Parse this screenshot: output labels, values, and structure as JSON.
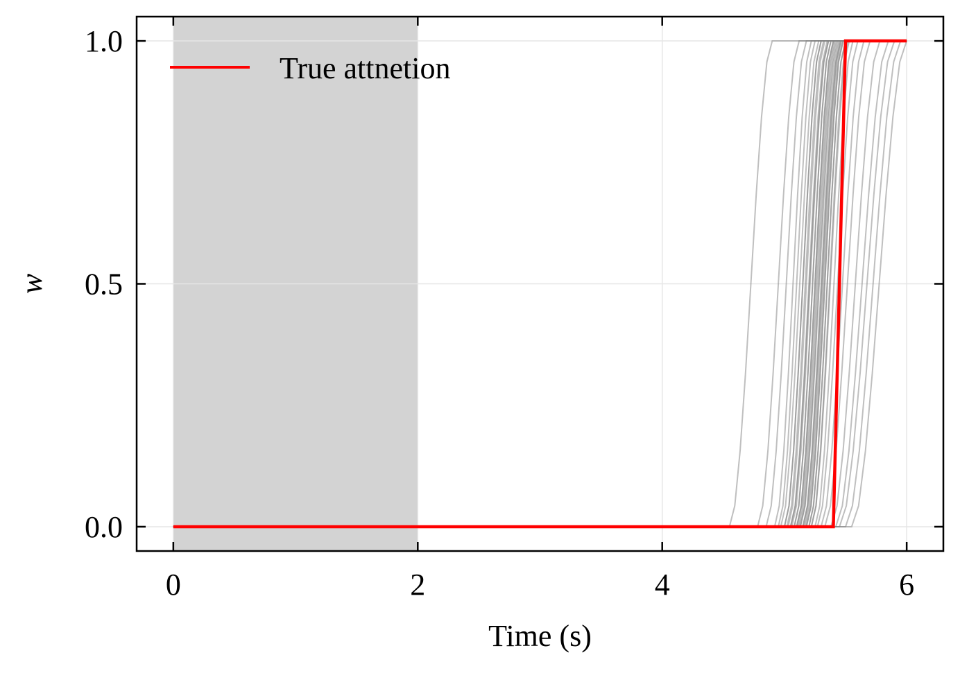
{
  "chart_data": {
    "type": "line",
    "xlabel": "Time (s)",
    "ylabel": "w",
    "xlim": [
      -0.3,
      6.3
    ],
    "ylim": [
      -0.05,
      1.05
    ],
    "x_ticks": [
      0,
      2,
      4,
      6
    ],
    "x_tick_labels": [
      "0",
      "2",
      "4",
      "6"
    ],
    "y_ticks": [
      0.0,
      0.5,
      1.0
    ],
    "y_tick_labels": [
      "0.0",
      "0.5",
      "1.0"
    ],
    "grid": true,
    "tick_direction": "in",
    "legend": {
      "position": "top-left",
      "entries": [
        {
          "label": "True attnetion",
          "color": "#ff0000"
        }
      ]
    },
    "shaded_region": {
      "x_start": 0,
      "x_end": 2,
      "color": "#d3d3d3"
    },
    "true_attention": {
      "name": "True attnetion",
      "color": "#ff0000",
      "x": [
        0,
        5.4,
        5.5,
        6.0
      ],
      "y": [
        0,
        0,
        1,
        1
      ]
    },
    "samples": {
      "color": "#808080",
      "opacity": 0.5,
      "count": 40,
      "transition_start_times": [
        4.55,
        4.78,
        4.85,
        4.92,
        4.95,
        4.97,
        5.0,
        5.0,
        5.02,
        5.03,
        5.05,
        5.05,
        5.06,
        5.08,
        5.08,
        5.1,
        5.1,
        5.11,
        5.12,
        5.13,
        5.13,
        5.15,
        5.15,
        5.16,
        5.17,
        5.18,
        5.18,
        5.2,
        5.2,
        5.22,
        5.22,
        5.25,
        5.27,
        5.3,
        5.33,
        5.38,
        5.42,
        5.45,
        5.5,
        5.55
      ],
      "transition_end_times": [
        4.9,
        5.12,
        5.18,
        5.22,
        5.25,
        5.28,
        5.3,
        5.3,
        5.32,
        5.33,
        5.35,
        5.36,
        5.36,
        5.38,
        5.38,
        5.4,
        5.4,
        5.41,
        5.42,
        5.43,
        5.44,
        5.45,
        5.46,
        5.46,
        5.47,
        5.48,
        5.48,
        5.5,
        5.5,
        5.52,
        5.53,
        5.56,
        5.6,
        5.65,
        5.7,
        5.78,
        5.85,
        5.9,
        5.95,
        6.0
      ]
    }
  }
}
